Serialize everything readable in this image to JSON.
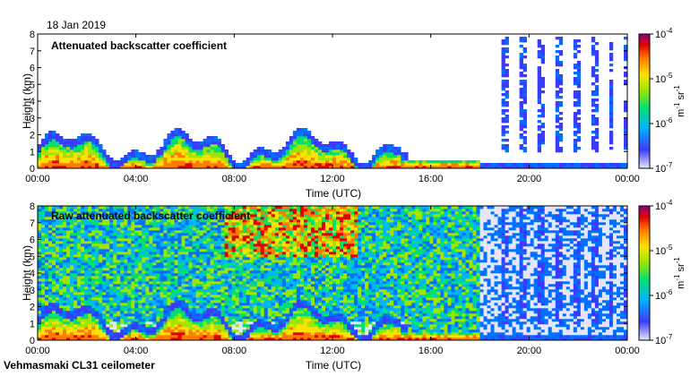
{
  "date": "18 Jan 2019",
  "instrument": "Vehmasmaki CL31 ceilometer",
  "chart_data": [
    {
      "type": "heatmap",
      "title": "Attenuated backscatter coefficient",
      "xlabel": "Time (UTC)",
      "ylabel": "Height (km)",
      "x_ticks": [
        "00:00",
        "04:00",
        "08:00",
        "12:00",
        "16:00",
        "20:00",
        "00:00"
      ],
      "y_ticks": [
        "0",
        "1",
        "2",
        "3",
        "4",
        "5",
        "6",
        "7",
        "8"
      ],
      "xlim_hours": [
        0,
        24
      ],
      "ylim_km": [
        0,
        8
      ],
      "colorbar": {
        "ticks": [
          "10",
          "10",
          "10",
          "10"
        ],
        "exponents": [
          "-4",
          "-5",
          "-6",
          "-7"
        ],
        "unit": "m",
        "unit_exp": "-1",
        "unit2": "sr",
        "unit2_exp": "-1"
      }
    },
    {
      "type": "heatmap",
      "title": "Raw attenuated backscatter coefficient",
      "xlabel": "Time (UTC)",
      "ylabel": "Height (km)",
      "x_ticks": [
        "00:00",
        "04:00",
        "08:00",
        "12:00",
        "16:00",
        "20:00",
        "00:00"
      ],
      "y_ticks": [
        "0",
        "1",
        "2",
        "3",
        "4",
        "5",
        "6",
        "7",
        "8"
      ],
      "xlim_hours": [
        0,
        24
      ],
      "ylim_km": [
        0,
        8
      ],
      "colorbar": {
        "ticks": [
          "10",
          "10",
          "10",
          "10"
        ],
        "exponents": [
          "-4",
          "-5",
          "-6",
          "-7"
        ],
        "unit": "m",
        "unit_exp": "-1",
        "unit2": "sr",
        "unit2_exp": "-1"
      }
    }
  ]
}
